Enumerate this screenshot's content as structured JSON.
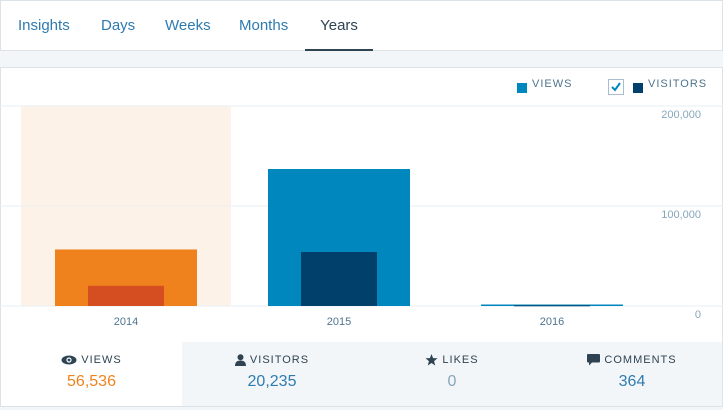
{
  "tabs": [
    {
      "label": "Insights",
      "active": false
    },
    {
      "label": "Days",
      "active": false
    },
    {
      "label": "Weeks",
      "active": false
    },
    {
      "label": "Months",
      "active": false
    },
    {
      "label": "Years",
      "active": true
    }
  ],
  "legend": {
    "views_label": "VIEWS",
    "visitors_label": "VISITORS",
    "visitors_checked": true
  },
  "colors": {
    "views": "#0087be",
    "visitors": "#00406b",
    "views_highlight": "#f0821e",
    "visitors_highlight": "#d54e21",
    "highlight_bg": "#fdf2e7",
    "grid": "#e9eff3",
    "axis_text": "#87a6bc",
    "tab_link": "#2e7bb0",
    "tab_active": "#2e4453",
    "value_highlight": "#f0821e",
    "value_link": "#2e7bb0",
    "value_muted": "#87a6bc"
  },
  "chart_data": {
    "type": "bar",
    "categories": [
      "2014",
      "2015",
      "2016"
    ],
    "series": [
      {
        "name": "Views",
        "values": [
          56536,
          137000,
          1500
        ]
      },
      {
        "name": "Visitors",
        "values": [
          20235,
          54000,
          700
        ]
      }
    ],
    "ylim": [
      0,
      200000
    ],
    "yticks": [
      {
        "value": 200000,
        "label": "200,000"
      },
      {
        "value": 100000,
        "label": "100,000"
      },
      {
        "value": 0,
        "label": "0"
      }
    ],
    "highlighted_category": "2014",
    "grid": true
  },
  "stats": [
    {
      "label": "VIEWS",
      "value": "56,536",
      "icon": "eye-icon",
      "selected": true
    },
    {
      "label": "VISITORS",
      "value": "20,235",
      "icon": "person-icon",
      "selected": false
    },
    {
      "label": "LIKES",
      "value": "0",
      "icon": "star-icon",
      "selected": false
    },
    {
      "label": "COMMENTS",
      "value": "364",
      "icon": "comment-icon",
      "selected": false
    }
  ]
}
